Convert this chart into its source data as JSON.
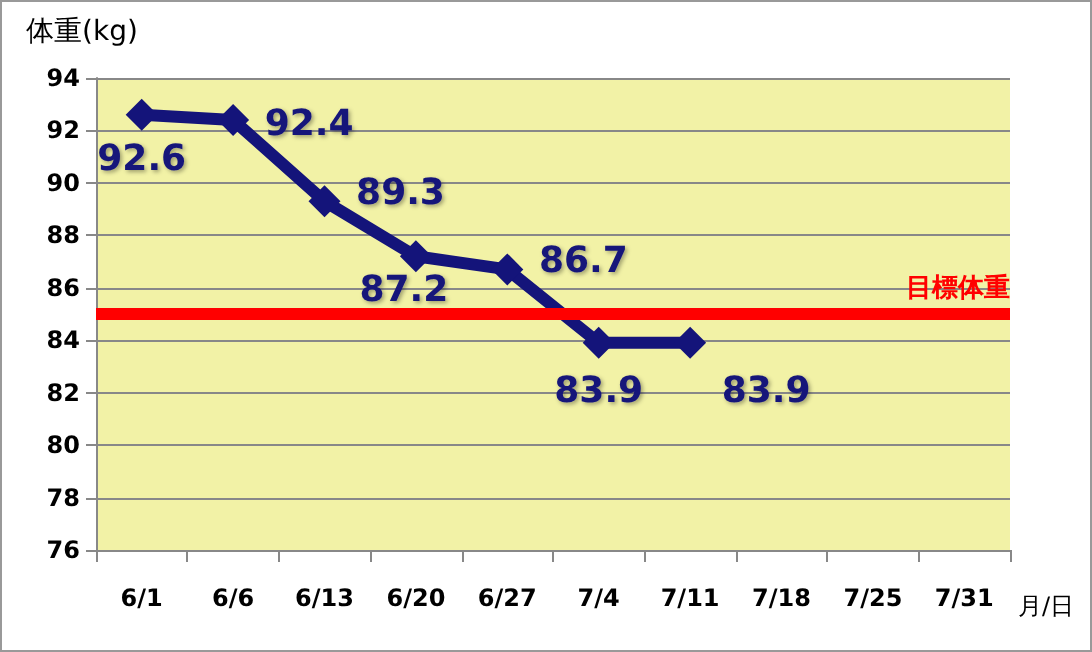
{
  "chart_data": {
    "type": "line",
    "ylabel": "体重(kg)",
    "xlabel": "月/日",
    "categories": [
      "6/1",
      "6/6",
      "6/13",
      "6/20",
      "6/27",
      "7/4",
      "7/11",
      "7/18",
      "7/25",
      "7/31"
    ],
    "series": [
      {
        "color": "#14147a",
        "values": [
          92.6,
          92.4,
          89.3,
          87.2,
          86.7,
          83.9,
          83.9,
          null,
          null,
          null
        ]
      }
    ],
    "ylim": [
      76,
      94
    ],
    "yticks": [
      76,
      78,
      80,
      82,
      84,
      86,
      88,
      90,
      92,
      94
    ],
    "ref_lines": [
      {
        "axis": "y",
        "value": 85,
        "label": "目標体重",
        "color": "#ff0000"
      }
    ],
    "data_labels": true,
    "grid": "y",
    "marker": "diamond",
    "line_style": "solid"
  }
}
